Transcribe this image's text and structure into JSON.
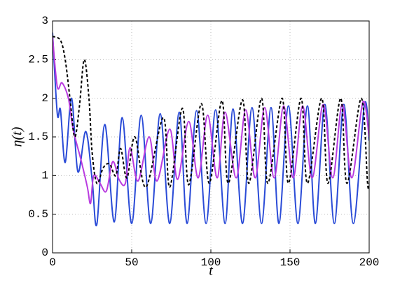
{
  "chart_data": {
    "type": "line",
    "xlabel": "t",
    "ylabel": "η(t)",
    "xlim": [
      0,
      200
    ],
    "ylim": [
      0,
      3
    ],
    "xticks": [
      0,
      50,
      100,
      150,
      200
    ],
    "yticks": [
      0,
      0.5,
      1,
      1.5,
      2,
      2.5,
      3
    ],
    "grid": true,
    "smooth": true,
    "series": [
      {
        "color": "#2a4bd7",
        "dash": "solid",
        "x": [
          0,
          3,
          5,
          8,
          12,
          16,
          21,
          25,
          28,
          33,
          39,
          44,
          50,
          56,
          62,
          68,
          74,
          80,
          85,
          91,
          97,
          103,
          109,
          114,
          120,
          126,
          132,
          138,
          143,
          149,
          155,
          161,
          166,
          172,
          178,
          184,
          190,
          197,
          200
        ],
        "values": [
          2.85,
          1.8,
          1.85,
          1.17,
          2.0,
          1.05,
          1.57,
          0.95,
          0.37,
          1.66,
          0.4,
          1.75,
          0.38,
          1.78,
          0.38,
          1.8,
          0.38,
          1.82,
          0.38,
          1.84,
          0.38,
          1.85,
          0.38,
          1.86,
          0.38,
          1.88,
          0.38,
          1.88,
          0.38,
          1.9,
          0.38,
          1.9,
          0.38,
          1.92,
          0.38,
          1.92,
          0.38,
          1.92,
          1.45
        ]
      },
      {
        "color": "#b93be0",
        "dash": "solid",
        "x": [
          0,
          3,
          6,
          10,
          13,
          18,
          22,
          24,
          26,
          30,
          34,
          38,
          42,
          46,
          49,
          54,
          61,
          66,
          74,
          79,
          86,
          92,
          98,
          104,
          109,
          116,
          122,
          128,
          134,
          140,
          146,
          152,
          158,
          164,
          171,
          177,
          183,
          189,
          196,
          200
        ],
        "values": [
          2.8,
          2.15,
          2.2,
          2.0,
          1.6,
          1.2,
          0.85,
          0.64,
          1.0,
          0.9,
          0.8,
          1.18,
          0.95,
          0.9,
          1.36,
          0.93,
          1.5,
          0.93,
          1.6,
          0.95,
          1.7,
          0.97,
          1.78,
          0.97,
          1.82,
          0.97,
          1.85,
          0.97,
          1.88,
          0.97,
          1.9,
          0.97,
          1.9,
          0.97,
          1.92,
          0.97,
          1.92,
          0.97,
          1.95,
          1.5
        ]
      },
      {
        "color": "#000000",
        "dash": "dashed",
        "x": [
          0,
          5,
          8,
          11,
          14,
          17,
          20,
          23,
          25,
          28,
          32,
          36,
          40,
          43,
          47,
          52,
          59,
          70,
          74,
          82,
          86,
          94,
          99,
          107,
          111,
          120,
          124,
          132,
          136,
          145,
          149,
          157,
          161,
          170,
          174,
          182,
          186,
          195,
          199,
          200
        ],
        "values": [
          2.8,
          2.75,
          2.5,
          2.0,
          1.5,
          1.9,
          2.5,
          2.0,
          1.3,
          0.9,
          1.1,
          1.15,
          1.0,
          1.35,
          0.97,
          1.5,
          0.85,
          1.75,
          0.85,
          1.87,
          0.88,
          1.93,
          0.9,
          1.97,
          0.9,
          1.98,
          0.9,
          2.0,
          0.9,
          2.0,
          0.9,
          2.0,
          0.9,
          2.0,
          0.9,
          2.0,
          0.9,
          2.0,
          0.9,
          0.9
        ]
      }
    ]
  }
}
